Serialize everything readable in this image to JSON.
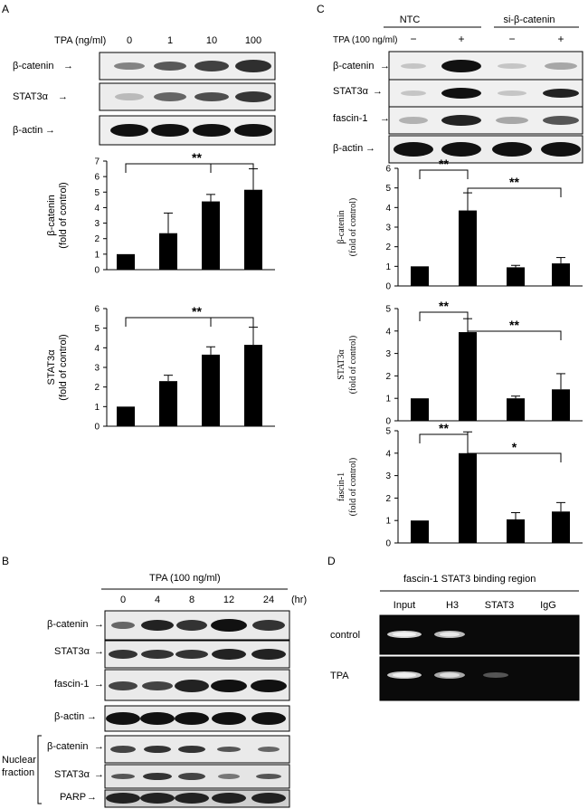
{
  "panel_labels": [
    "A",
    "B",
    "C",
    "D"
  ],
  "panelA": {
    "header": "TPA (ng/ml)",
    "lanes": [
      "0",
      "1",
      "10",
      "100"
    ],
    "blots": [
      "β-catenin",
      "STAT3α",
      "β-actin"
    ],
    "significance": "**"
  },
  "panelC": {
    "groups": [
      "NTC",
      "si-β-catenin"
    ],
    "treatment_label": "TPA (100 ng/ml)",
    "treatment_marks": [
      "−",
      "+",
      "−",
      "+"
    ],
    "blots": [
      "β-catenin",
      "STAT3α",
      "fascin-1",
      "β-actin"
    ],
    "significance": [
      "**",
      "**",
      "**",
      "**",
      "**",
      "*"
    ]
  },
  "panelB": {
    "header": "TPA (100 ng/ml)",
    "time_points": [
      "0",
      "4",
      "8",
      "12",
      "24"
    ],
    "time_unit": "(hr)",
    "blots": [
      "β-catenin",
      "STAT3α",
      "fascin-1",
      "β-actin"
    ],
    "nuclear_label": [
      "Nuclear",
      "fraction"
    ],
    "nuclear_blots": [
      "β-catenin",
      "STAT3α",
      "PARP"
    ]
  },
  "panelD": {
    "header": "fascin-1 STAT3 binding region",
    "lanes": [
      "Input",
      "H3",
      "STAT3",
      "IgG"
    ],
    "rows": [
      "control",
      "TPA"
    ]
  },
  "chart_data": [
    {
      "type": "bar",
      "panel": "A",
      "categories": [
        "0",
        "1",
        "10",
        "100"
      ],
      "values": [
        1.0,
        2.35,
        4.4,
        5.15
      ],
      "errors": [
        0,
        1.3,
        0.45,
        1.35
      ],
      "ylabel": [
        "β-catenin",
        "(fold of control)"
      ],
      "ylim": [
        0,
        7
      ],
      "yticks": [
        "0",
        "1",
        "2",
        "3",
        "4",
        "5",
        "6",
        "7"
      ]
    },
    {
      "type": "bar",
      "panel": "A",
      "categories": [
        "0",
        "1",
        "10",
        "100"
      ],
      "values": [
        1.0,
        2.3,
        3.65,
        4.15
      ],
      "errors": [
        0,
        0.3,
        0.4,
        0.9
      ],
      "ylabel": [
        "STAT3α",
        "(fold of control)"
      ],
      "ylim": [
        0,
        6
      ],
      "yticks": [
        "0",
        "1",
        "2",
        "3",
        "4",
        "5",
        "6"
      ]
    },
    {
      "type": "bar",
      "panel": "C",
      "categories": [
        "NTC −",
        "NTC +",
        "si-β-catenin −",
        "si-β-catenin +"
      ],
      "values": [
        1.0,
        3.85,
        0.95,
        1.15
      ],
      "errors": [
        0,
        0.9,
        0.1,
        0.3
      ],
      "ylabel": [
        "β-catenin",
        "(fold of control)"
      ],
      "ylim": [
        0,
        6
      ],
      "yticks": [
        "0",
        "1",
        "2",
        "3",
        "4",
        "5",
        "6"
      ]
    },
    {
      "type": "bar",
      "panel": "C",
      "categories": [
        "NTC −",
        "NTC +",
        "si-β-catenin −",
        "si-β-catenin +"
      ],
      "values": [
        1.0,
        3.95,
        1.0,
        1.4
      ],
      "errors": [
        0,
        0.6,
        0.1,
        0.7
      ],
      "ylabel": [
        "STAT3α",
        "(fold of control)"
      ],
      "ylim": [
        0,
        5
      ],
      "yticks": [
        "0",
        "1",
        "2",
        "3",
        "4",
        "5"
      ]
    },
    {
      "type": "bar",
      "panel": "C",
      "categories": [
        "NTC −",
        "NTC +",
        "si-β-catenin −",
        "si-β-catenin +"
      ],
      "values": [
        1.0,
        4.0,
        1.05,
        1.4
      ],
      "errors": [
        0,
        0.95,
        0.3,
        0.4
      ],
      "ylabel": [
        "fascin-1",
        "(fold of control)"
      ],
      "ylim": [
        0,
        5
      ],
      "yticks": [
        "0",
        "1",
        "2",
        "3",
        "4",
        "5"
      ]
    }
  ]
}
